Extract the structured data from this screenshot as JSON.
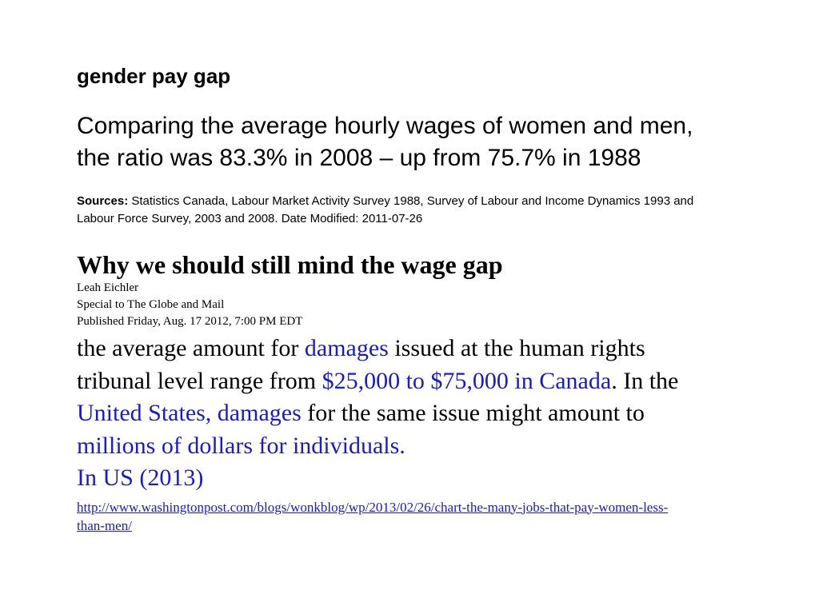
{
  "heading": "gender pay gap",
  "summary": {
    "line1": "Comparing the average hourly wages of women and men,",
    "line2": "the ratio was 83.3% in 2008 – up from 75.7% in 1988"
  },
  "sources": {
    "label": "Sources:",
    "line1_rest": " Statistics Canada, Labour Market Activity Survey 1988, Survey of Labour and Income Dynamics 1993 and",
    "line2": "Labour Force Survey, 2003 and 2008. Date Modified: 2011-07-26"
  },
  "article": {
    "title": "Why we should still mind the wage gap",
    "author": "Leah Eichler",
    "affiliation": "Special to The Globe and Mail",
    "published": "Published Friday, Aug. 17 2012, 7:00 PM EDT"
  },
  "body": {
    "l1_a": "the average amount for ",
    "l1_link": "damages",
    "l1_b": " issued at the human rights",
    "l2_a": "tribunal level range from ",
    "l2_link": "$25,000 to $75,000 in Canada",
    "l2_b": ". In the",
    "l3_link": "United States, damages",
    "l3_b": " for the same issue might amount to",
    "l4_link": "millions of dollars for individuals.",
    "l5_link": "In US (2013)"
  },
  "url": {
    "line1": "http://www.washingtonpost.com/blogs/wonkblog/wp/2013/02/26/chart-the-many-jobs-that-pay-women-less-",
    "line2": "than-men/"
  },
  "colors": {
    "link": "#1a1ac8",
    "text": "#000000",
    "background": "#ffffff"
  }
}
